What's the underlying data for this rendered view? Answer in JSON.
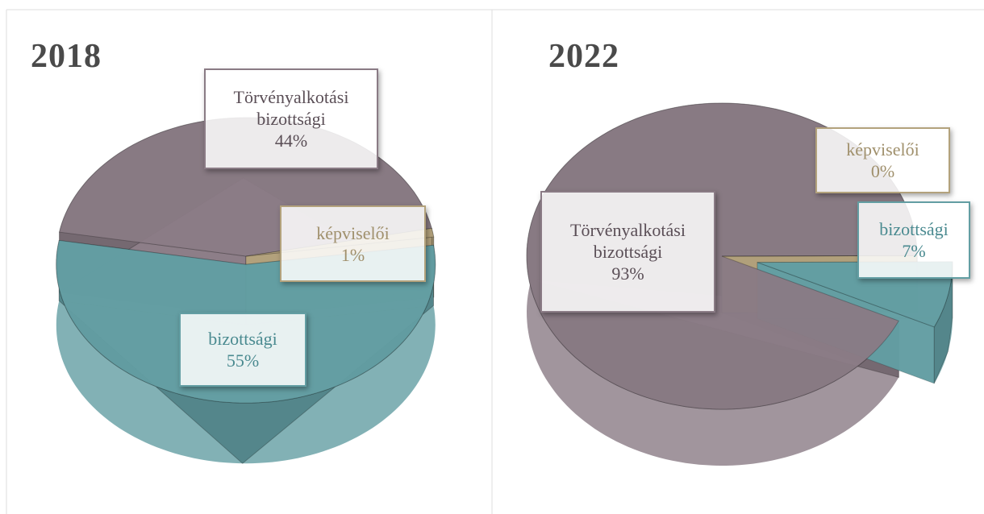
{
  "chart_data": [
    {
      "type": "pie",
      "title": "2018",
      "categories": [
        "Törvényalkotási bizottsági",
        "képviselői",
        "bizottsági"
      ],
      "values": [
        44,
        1,
        55
      ],
      "value_labels": [
        "44%",
        "1%",
        "55%"
      ],
      "colors": [
        "#8a7b85",
        "#b3a27c",
        "#639ea3"
      ]
    },
    {
      "type": "pie",
      "title": "2022",
      "categories": [
        "Törvényalkotási bizottsági",
        "képviselői",
        "bizottsági"
      ],
      "values": [
        93,
        0,
        7
      ],
      "value_labels": [
        "93%",
        "0%",
        "7%"
      ],
      "colors": [
        "#8a7b85",
        "#b3a27c",
        "#639ea3"
      ]
    }
  ]
}
